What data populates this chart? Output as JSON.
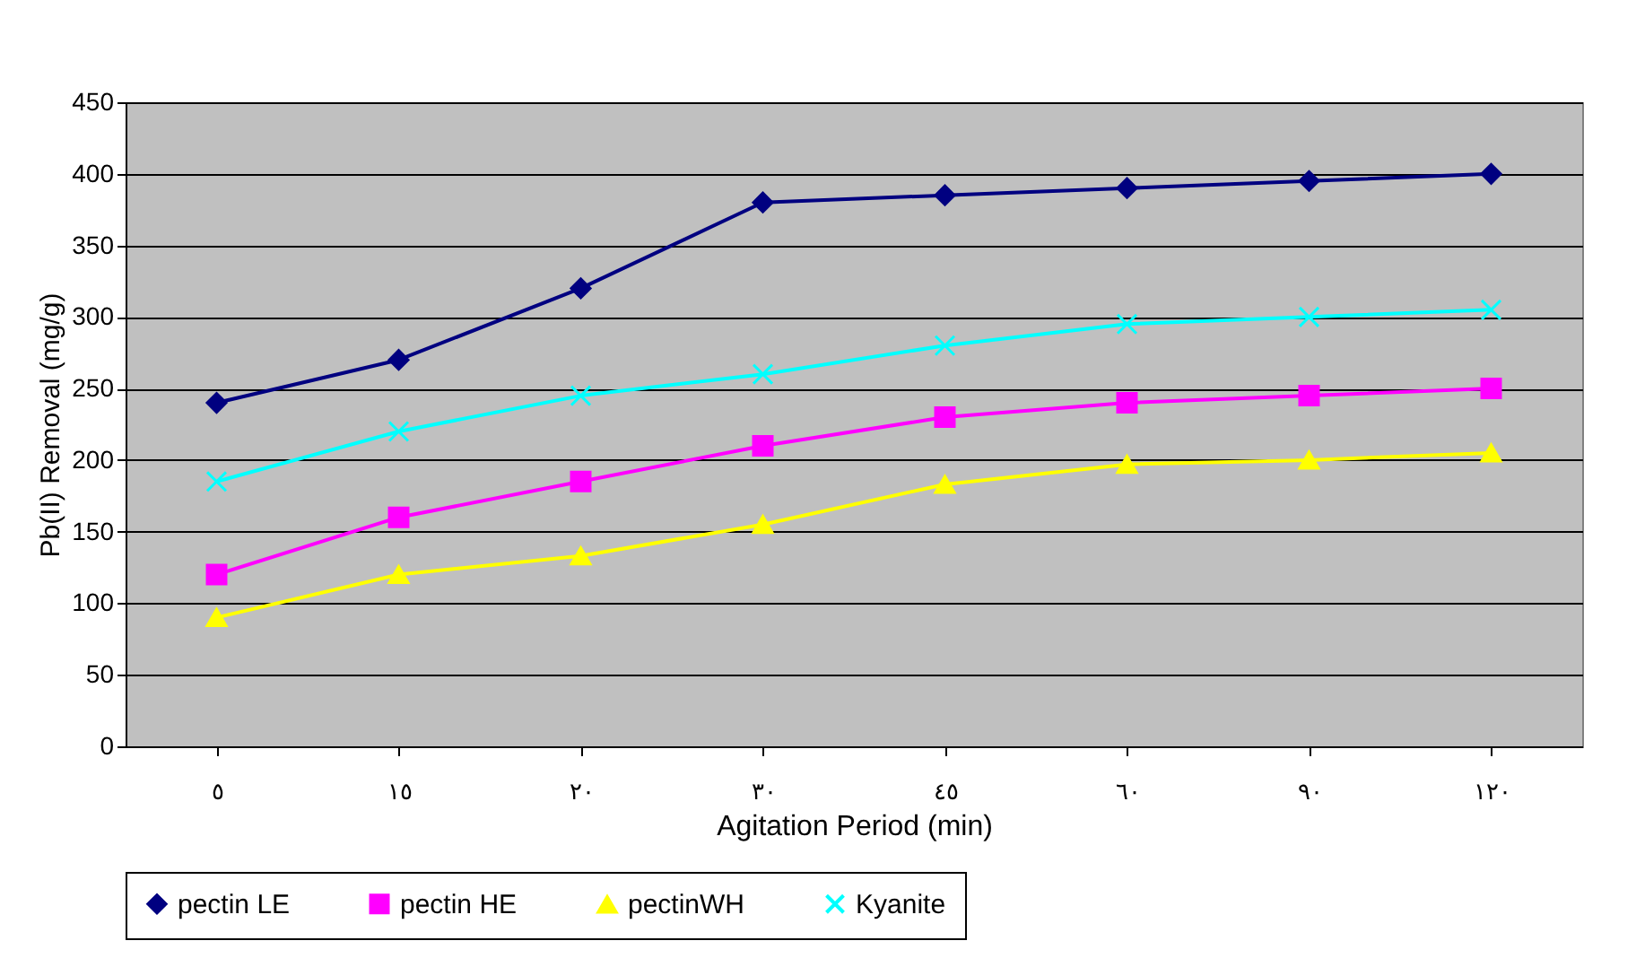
{
  "chart_data": {
    "type": "line",
    "xlabel": "Agitation Period (min)",
    "ylabel": "Pb(II) Removal (mg/g)",
    "categories": [
      "٥",
      "١٥",
      "٢٠",
      "٣٠",
      "٤٥",
      "٦٠",
      "٩٠",
      "١٢٠"
    ],
    "series": [
      {
        "name": "pectin LE",
        "color": "#000080",
        "marker": "diamond",
        "values": [
          240,
          270,
          320,
          380,
          385,
          390,
          395,
          400
        ]
      },
      {
        "name": "pectin HE",
        "color": "#ff00ff",
        "marker": "square",
        "values": [
          120,
          160,
          185,
          210,
          230,
          240,
          245,
          250
        ]
      },
      {
        "name": "pectinWH",
        "color": "#ffff00",
        "marker": "triangle",
        "values": [
          90,
          120,
          133,
          155,
          183,
          197,
          200,
          205
        ]
      },
      {
        "name": "Kyanite",
        "color": "#00ffff",
        "marker": "cross",
        "values": [
          185,
          220,
          245,
          260,
          280,
          295,
          300,
          305
        ]
      }
    ],
    "ylim": [
      0,
      450
    ],
    "yticks": [
      0,
      50,
      100,
      150,
      200,
      250,
      300,
      350,
      400,
      450
    ],
    "grid": "y",
    "legend": "bottom",
    "line_style": "solid"
  }
}
